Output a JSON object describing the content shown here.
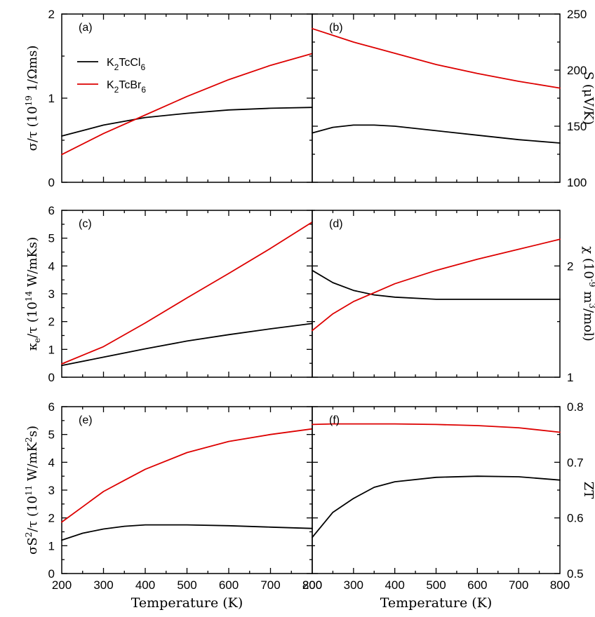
{
  "chart_data": [
    {
      "type": "line",
      "panel": "(a)",
      "ylabel": "σ/τ (10^19 1/Ωms)",
      "ylabel_parts": [
        "σ/τ (10",
        "19",
        " 1/Ωms)"
      ],
      "x": [
        200,
        300,
        400,
        500,
        600,
        700,
        800
      ],
      "xlim": [
        200,
        800
      ],
      "ylim": [
        0,
        2
      ],
      "yticks": [
        0,
        1,
        2
      ],
      "ytick_side": "left",
      "legend": "top-left",
      "series": [
        {
          "name": "K2TcCl6",
          "color": "#000000",
          "values": [
            0.55,
            0.68,
            0.77,
            0.82,
            0.86,
            0.88,
            0.89
          ]
        },
        {
          "name": "K2TcBr6",
          "color": "#dd0000",
          "values": [
            0.33,
            0.58,
            0.8,
            1.02,
            1.22,
            1.39,
            1.53
          ]
        }
      ]
    },
    {
      "type": "line",
      "panel": "(b)",
      "ylabel": "S (μV/K)",
      "ylabel_parts": [
        "S (μV/K)"
      ],
      "x": [
        200,
        250,
        300,
        350,
        400,
        500,
        600,
        700,
        800
      ],
      "xlim": [
        200,
        800
      ],
      "ylim": [
        100,
        250
      ],
      "yticks": [
        100,
        150,
        200,
        250
      ],
      "ytick_side": "right",
      "series": [
        {
          "name": "K2TcCl6",
          "color": "#000000",
          "values": [
            144,
            149,
            151,
            151,
            150,
            146,
            142,
            138,
            135
          ]
        },
        {
          "name": "K2TcBr6",
          "color": "#dd0000",
          "values": [
            237,
            231,
            225,
            220,
            215,
            205,
            197,
            190,
            184
          ]
        }
      ]
    },
    {
      "type": "line",
      "panel": "(c)",
      "ylabel": "κe/τ (10^14 W/mKs)",
      "ylabel_parts": [
        "κ",
        "e",
        "/τ (10",
        "14",
        " W/mKs)"
      ],
      "x": [
        200,
        300,
        400,
        500,
        600,
        700,
        800
      ],
      "xlim": [
        200,
        800
      ],
      "ylim": [
        0,
        6
      ],
      "yticks": [
        0,
        1,
        2,
        3,
        4,
        5,
        6
      ],
      "ytick_side": "left",
      "series": [
        {
          "name": "K2TcCl6",
          "color": "#000000",
          "values": [
            0.42,
            0.72,
            1.02,
            1.3,
            1.53,
            1.74,
            1.93
          ]
        },
        {
          "name": "K2TcBr6",
          "color": "#dd0000",
          "values": [
            0.48,
            1.1,
            1.95,
            2.85,
            3.73,
            4.63,
            5.58
          ]
        }
      ]
    },
    {
      "type": "line",
      "panel": "(d)",
      "ylabel": "χ (10^-9 m^3/mol)",
      "ylabel_parts": [
        "χ (10",
        "-9",
        " m",
        "3",
        "/mol)"
      ],
      "x": [
        200,
        250,
        300,
        350,
        400,
        500,
        600,
        700,
        800
      ],
      "xlim": [
        200,
        800
      ],
      "ylim": [
        1,
        2.5
      ],
      "yticks": [
        1,
        2
      ],
      "ytick_side": "right",
      "series": [
        {
          "name": "K2TcCl6",
          "color": "#000000",
          "values": [
            1.96,
            1.85,
            1.78,
            1.74,
            1.72,
            1.7,
            1.7,
            1.7,
            1.7
          ]
        },
        {
          "name": "K2TcBr6",
          "color": "#dd0000",
          "values": [
            1.42,
            1.57,
            1.68,
            1.76,
            1.84,
            1.96,
            2.06,
            2.15,
            2.24
          ]
        }
      ]
    },
    {
      "type": "line",
      "panel": "(e)",
      "ylabel": "σS²/τ (10^11 W/mK²s)",
      "ylabel_parts": [
        "σS",
        "2",
        "/τ (10",
        "11",
        " W/mK",
        "2",
        "s)"
      ],
      "x": [
        200,
        250,
        300,
        350,
        400,
        500,
        600,
        700,
        800
      ],
      "xlim": [
        200,
        800
      ],
      "xlabel": "Temperature (K)",
      "xticks": [
        200,
        300,
        400,
        500,
        600,
        700,
        800
      ],
      "ylim": [
        0,
        6
      ],
      "yticks": [
        0,
        1,
        2,
        3,
        4,
        5,
        6
      ],
      "ytick_side": "left",
      "series": [
        {
          "name": "K2TcCl6",
          "color": "#000000",
          "values": [
            1.2,
            1.45,
            1.6,
            1.7,
            1.75,
            1.75,
            1.72,
            1.67,
            1.62
          ]
        },
        {
          "name": "K2TcBr6",
          "color": "#dd0000",
          "values": [
            1.85,
            2.4,
            2.95,
            3.35,
            3.75,
            4.35,
            4.75,
            5.0,
            5.2
          ]
        }
      ]
    },
    {
      "type": "line",
      "panel": "(f)",
      "ylabel": "ZT",
      "ylabel_parts": [
        "ZT"
      ],
      "x": [
        200,
        250,
        300,
        350,
        400,
        500,
        600,
        700,
        800
      ],
      "xlim": [
        200,
        800
      ],
      "xlabel": "Temperature (K)",
      "xticks": [
        200,
        300,
        400,
        500,
        600,
        700,
        800
      ],
      "ylim": [
        0.5,
        0.8
      ],
      "yticks": [
        0.5,
        0.6,
        0.7,
        0.8
      ],
      "ytick_side": "right",
      "series": [
        {
          "name": "K2TcCl6",
          "color": "#000000",
          "values": [
            0.565,
            0.61,
            0.635,
            0.655,
            0.665,
            0.673,
            0.675,
            0.674,
            0.668
          ]
        },
        {
          "name": "K2TcBr6",
          "color": "#dd0000",
          "values": [
            0.768,
            0.769,
            0.769,
            0.769,
            0.769,
            0.768,
            0.766,
            0.762,
            0.754
          ]
        }
      ]
    }
  ],
  "legend": {
    "items": [
      {
        "base": "K",
        "s1": "2",
        "mid": "TcCl",
        "s2": "6",
        "color": "#000000"
      },
      {
        "base": "K",
        "s1": "2",
        "mid": "TcBr",
        "s2": "6",
        "color": "#dd0000"
      }
    ]
  }
}
